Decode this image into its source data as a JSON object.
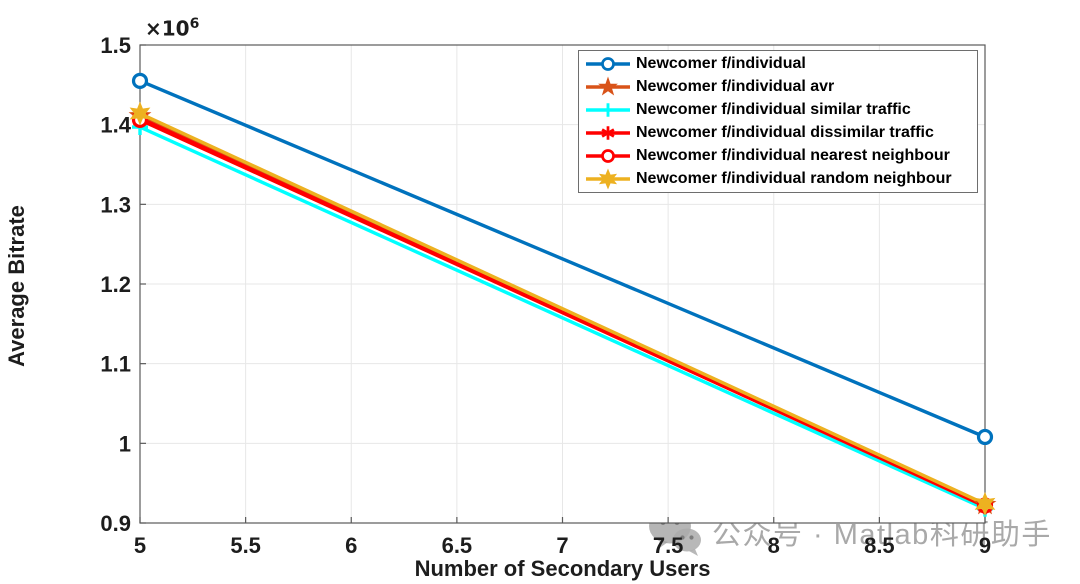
{
  "figure": {
    "background": "#ffffff",
    "axis_color": "#5a5a5a",
    "grid_color": "#e7e7e7",
    "tick_text_color": "#1d1d1d"
  },
  "y_axis": {
    "exponent_base": "×10",
    "exponent_power": "6"
  },
  "watermark": {
    "icon": "wechat-icon",
    "text": "公众号 · Matlab科研助手"
  },
  "chart_data": {
    "type": "line",
    "title": "",
    "xlabel": "Number of Secondary Users",
    "ylabel": "Average Bitrate",
    "x": [
      5,
      9
    ],
    "xlim": [
      5,
      9
    ],
    "ylim": [
      900000,
      1500000
    ],
    "xticks": [
      5,
      5.5,
      6,
      6.5,
      7,
      7.5,
      8,
      8.5,
      9
    ],
    "yticks": [
      0.9,
      1,
      1.1,
      1.2,
      1.3,
      1.4,
      1.5
    ],
    "y_tick_scale": 1000000,
    "grid": true,
    "legend_position": "northeast",
    "series": [
      {
        "name": "Newcomer f/individual",
        "color": "#0072BD",
        "marker": "circle-open",
        "values": [
          1455000,
          1008000
        ]
      },
      {
        "name": "Newcomer f/individual avr",
        "color": "#D95319",
        "marker": "pentagram",
        "values": [
          1411000,
          923000
        ]
      },
      {
        "name": "Newcomer f/individual similar traffic",
        "color": "#00FFFF",
        "marker": "plus",
        "values": [
          1397000,
          918000
        ]
      },
      {
        "name": "Newcomer f/individual dissimilar traffic",
        "color": "#FF0000",
        "marker": "asterisk",
        "values": [
          1408000,
          921000
        ]
      },
      {
        "name": "Newcomer f/individual nearest neighbour",
        "color": "#FF0000",
        "marker": "circle-open",
        "values": [
          1406000,
          922000
        ]
      },
      {
        "name": "Newcomer f/individual random neighbour",
        "color": "#EDB120",
        "marker": "hexagram",
        "values": [
          1414000,
          924000
        ]
      }
    ]
  }
}
